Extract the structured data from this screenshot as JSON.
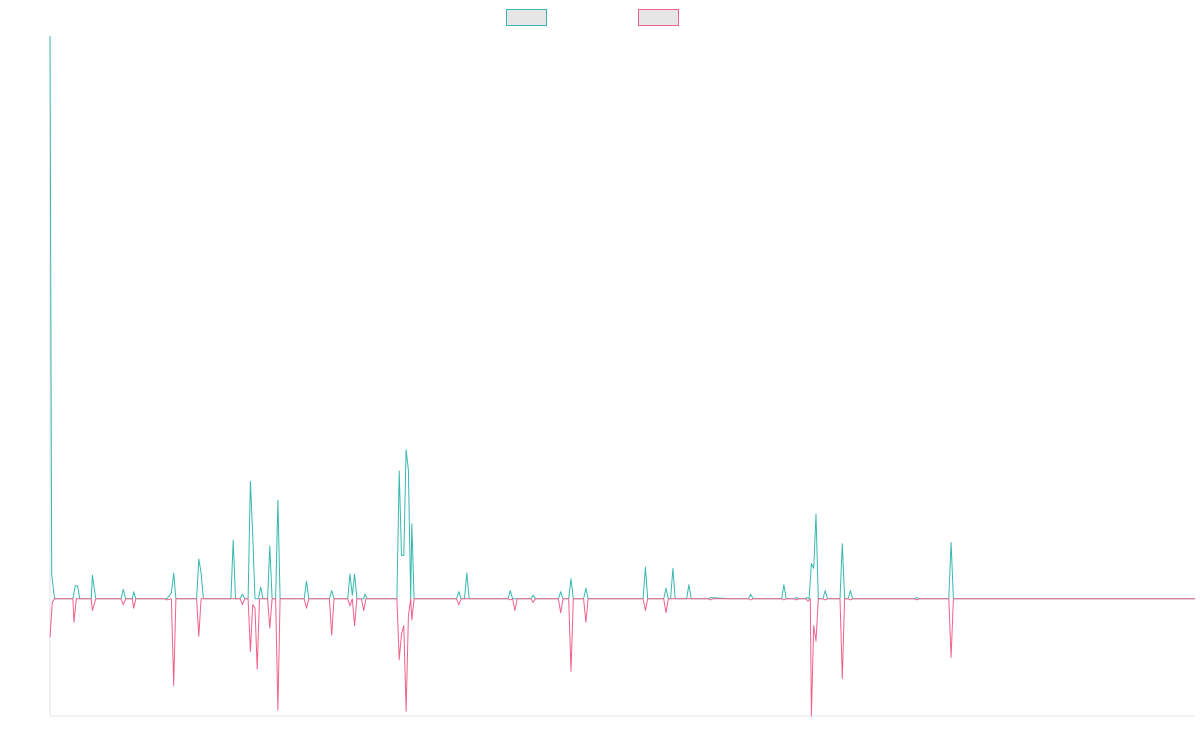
{
  "chart_data": {
    "type": "line",
    "title": "",
    "xlabel": "",
    "ylabel": "",
    "legend_placement": "top-center",
    "grid": false,
    "x_range": [
      0,
      1000
    ],
    "ylim": [
      -1.0,
      4.8
    ],
    "series": [
      {
        "color": "#36b9b1",
        "fill": "#e6e6e6",
        "points": [
          [
            0,
            4.8
          ],
          [
            1.5,
            0.2
          ],
          [
            4,
            0.0
          ],
          [
            20,
            0.0
          ],
          [
            22,
            0.11
          ],
          [
            24,
            0.11
          ],
          [
            26,
            0.0
          ],
          [
            36,
            0.0
          ],
          [
            37,
            0.2
          ],
          [
            40,
            0.0
          ],
          [
            62,
            0.0
          ],
          [
            64,
            0.08
          ],
          [
            66,
            0.0
          ],
          [
            72,
            0.0
          ],
          [
            73,
            0.06
          ],
          [
            75,
            0.0
          ],
          [
            100,
            0.0
          ],
          [
            102,
            0.0
          ],
          [
            106,
            0.05
          ],
          [
            108,
            0.22
          ],
          [
            110,
            0.0
          ],
          [
            128,
            0.0
          ],
          [
            130,
            0.34
          ],
          [
            132,
            0.22
          ],
          [
            134,
            0.0
          ],
          [
            158,
            0.0
          ],
          [
            160,
            0.5
          ],
          [
            162,
            0.0
          ],
          [
            166,
            0.0
          ],
          [
            168,
            0.04
          ],
          [
            170,
            0.0
          ],
          [
            173,
            0.0
          ],
          [
            175,
            1.0
          ],
          [
            177,
            0.55
          ],
          [
            179,
            0.0
          ],
          [
            182,
            0.0
          ],
          [
            184,
            0.1
          ],
          [
            186,
            0.0
          ],
          [
            190,
            0.0
          ],
          [
            192,
            0.45
          ],
          [
            194,
            0.0
          ],
          [
            197,
            0.0
          ],
          [
            199,
            0.84
          ],
          [
            201,
            0.0
          ],
          [
            222,
            0.0
          ],
          [
            224,
            0.15
          ],
          [
            226,
            0.0
          ],
          [
            244,
            0.0
          ],
          [
            246,
            0.07
          ],
          [
            248,
            0.0
          ],
          [
            260,
            0.0
          ],
          [
            262,
            0.21
          ],
          [
            264,
            0.03
          ],
          [
            266,
            0.21
          ],
          [
            268,
            0.0
          ],
          [
            274,
            0.0
          ],
          [
            275,
            0.04
          ],
          [
            277,
            0.0
          ],
          [
            303,
            0.0
          ],
          [
            305,
            1.09
          ],
          [
            307,
            0.37
          ],
          [
            309,
            0.37
          ],
          [
            311,
            1.27
          ],
          [
            313,
            1.1
          ],
          [
            315,
            0.0
          ],
          [
            316,
            0.64
          ],
          [
            318,
            0.0
          ],
          [
            355,
            0.0
          ],
          [
            357,
            0.06
          ],
          [
            359,
            0.0
          ],
          [
            362,
            0.0
          ],
          [
            364,
            0.22
          ],
          [
            366,
            0.0
          ],
          [
            400,
            0.0
          ],
          [
            402,
            0.07
          ],
          [
            404,
            0.0
          ],
          [
            420,
            0.0
          ],
          [
            422,
            0.03
          ],
          [
            424,
            0.0
          ],
          [
            444,
            0.0
          ],
          [
            446,
            0.06
          ],
          [
            448,
            0.0
          ],
          [
            453,
            0.0
          ],
          [
            455,
            0.17
          ],
          [
            457,
            0.0
          ],
          [
            466,
            0.0
          ],
          [
            468,
            0.09
          ],
          [
            470,
            0.0
          ],
          [
            518,
            0.0
          ],
          [
            520,
            0.27
          ],
          [
            522,
            0.0
          ],
          [
            536,
            0.0
          ],
          [
            538,
            0.09
          ],
          [
            540,
            0.0
          ],
          [
            542,
            0.0
          ],
          [
            544,
            0.26
          ],
          [
            546,
            0.0
          ],
          [
            556,
            0.0
          ],
          [
            558,
            0.12
          ],
          [
            560,
            0.0
          ],
          [
            575,
            0.0
          ],
          [
            577,
            0.01
          ],
          [
            594,
            0.0
          ],
          [
            596,
            0.0
          ],
          [
            610,
            0.0
          ],
          [
            612,
            0.04
          ],
          [
            614,
            0.0
          ],
          [
            639,
            0.0
          ],
          [
            641,
            0.12
          ],
          [
            643,
            0.0
          ],
          [
            650,
            0.0
          ],
          [
            652,
            0.01
          ],
          [
            654,
            0.0
          ],
          [
            660,
            0.0
          ],
          [
            661,
            0.01
          ],
          [
            663,
            0.0
          ],
          [
            665,
            0.3
          ],
          [
            667,
            0.26
          ],
          [
            669,
            0.72
          ],
          [
            671,
            0.0
          ],
          [
            675,
            0.0
          ],
          [
            677,
            0.07
          ],
          [
            679,
            0.0
          ],
          [
            690,
            0.0
          ],
          [
            692,
            0.47
          ],
          [
            694,
            0.0
          ],
          [
            697,
            0.0
          ],
          [
            699,
            0.07
          ],
          [
            701,
            0.0
          ],
          [
            755,
            0.0
          ],
          [
            757,
            0.01
          ],
          [
            759,
            0.0
          ],
          [
            785,
            0.0
          ],
          [
            787,
            0.48
          ],
          [
            789,
            0.0
          ],
          [
            800,
            0.0
          ],
          [
            1000,
            0.0
          ]
        ]
      },
      {
        "color": "#f0628a",
        "fill": "#e6e6e6",
        "points": [
          [
            0,
            -0.33
          ],
          [
            2,
            -0.03
          ],
          [
            4,
            0.0
          ],
          [
            20,
            0.0
          ],
          [
            21,
            -0.2
          ],
          [
            23,
            0.0
          ],
          [
            36,
            0.0
          ],
          [
            37,
            -0.1
          ],
          [
            40,
            0.0
          ],
          [
            62,
            0.0
          ],
          [
            64,
            -0.05
          ],
          [
            66,
            0.0
          ],
          [
            72,
            0.0
          ],
          [
            73,
            -0.08
          ],
          [
            75,
            0.0
          ],
          [
            100,
            0.0
          ],
          [
            102,
            -0.01
          ],
          [
            106,
            0.0
          ],
          [
            108,
            -0.74
          ],
          [
            110,
            0.0
          ],
          [
            128,
            0.0
          ],
          [
            130,
            -0.32
          ],
          [
            132,
            0.0
          ],
          [
            166,
            0.0
          ],
          [
            168,
            -0.05
          ],
          [
            170,
            0.0
          ],
          [
            173,
            0.0
          ],
          [
            175,
            -0.45
          ],
          [
            177,
            -0.05
          ],
          [
            179,
            -0.08
          ],
          [
            181,
            -0.6
          ],
          [
            183,
            0.0
          ],
          [
            190,
            0.0
          ],
          [
            192,
            -0.25
          ],
          [
            194,
            0.0
          ],
          [
            197,
            0.0
          ],
          [
            199,
            -0.95
          ],
          [
            201,
            0.0
          ],
          [
            222,
            0.0
          ],
          [
            224,
            -0.08
          ],
          [
            226,
            0.0
          ],
          [
            244,
            0.0
          ],
          [
            246,
            -0.31
          ],
          [
            248,
            0.0
          ],
          [
            260,
            0.0
          ],
          [
            262,
            -0.06
          ],
          [
            264,
            0.0
          ],
          [
            266,
            -0.23
          ],
          [
            268,
            0.0
          ],
          [
            272,
            0.0
          ],
          [
            274,
            -0.1
          ],
          [
            276,
            0.0
          ],
          [
            303,
            0.0
          ],
          [
            305,
            -0.52
          ],
          [
            307,
            -0.3
          ],
          [
            309,
            -0.23
          ],
          [
            311,
            -0.96
          ],
          [
            313,
            -0.15
          ],
          [
            315,
            0.0
          ],
          [
            316,
            -0.18
          ],
          [
            318,
            0.0
          ],
          [
            355,
            0.0
          ],
          [
            357,
            -0.05
          ],
          [
            359,
            0.0
          ],
          [
            400,
            0.0
          ],
          [
            402,
            -0.01
          ],
          [
            404,
            0.0
          ],
          [
            406,
            -0.1
          ],
          [
            408,
            0.0
          ],
          [
            420,
            0.0
          ],
          [
            422,
            -0.03
          ],
          [
            424,
            0.0
          ],
          [
            444,
            0.0
          ],
          [
            446,
            -0.12
          ],
          [
            448,
            0.0
          ],
          [
            453,
            0.0
          ],
          [
            455,
            -0.62
          ],
          [
            457,
            0.0
          ],
          [
            466,
            0.0
          ],
          [
            468,
            -0.2
          ],
          [
            470,
            0.0
          ],
          [
            518,
            0.0
          ],
          [
            520,
            -0.1
          ],
          [
            522,
            0.0
          ],
          [
            536,
            0.0
          ],
          [
            538,
            -0.12
          ],
          [
            540,
            0.0
          ],
          [
            575,
            0.0
          ],
          [
            577,
            -0.01
          ],
          [
            579,
            0.0
          ],
          [
            594,
            0.0
          ],
          [
            596,
            0.0
          ],
          [
            610,
            0.0
          ],
          [
            612,
            -0.01
          ],
          [
            614,
            0.0
          ],
          [
            639,
            0.0
          ],
          [
            641,
            -0.01
          ],
          [
            643,
            0.0
          ],
          [
            650,
            0.0
          ],
          [
            652,
            -0.01
          ],
          [
            654,
            0.0
          ],
          [
            660,
            0.0
          ],
          [
            662,
            -0.02
          ],
          [
            664,
            0.0
          ],
          [
            665,
            -1.0
          ],
          [
            667,
            -0.23
          ],
          [
            669,
            -0.36
          ],
          [
            671,
            0.0
          ],
          [
            675,
            0.0
          ],
          [
            677,
            -0.01
          ],
          [
            679,
            0.0
          ],
          [
            690,
            0.0
          ],
          [
            692,
            -0.68
          ],
          [
            694,
            0.0
          ],
          [
            697,
            0.0
          ],
          [
            699,
            -0.01
          ],
          [
            701,
            0.0
          ],
          [
            755,
            0.0
          ],
          [
            757,
            -0.01
          ],
          [
            759,
            0.0
          ],
          [
            785,
            0.0
          ],
          [
            787,
            -0.5
          ],
          [
            789,
            0.0
          ],
          [
            800,
            0.0
          ],
          [
            1000,
            0.0
          ]
        ]
      }
    ]
  }
}
